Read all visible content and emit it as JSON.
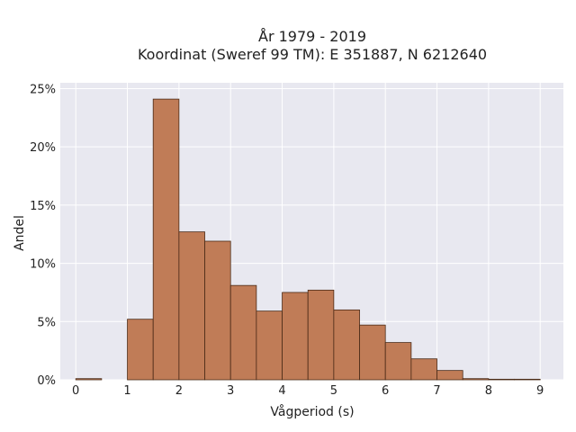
{
  "chart_data": {
    "type": "bar",
    "title_line1": "År 1979 - 2019",
    "title_line2": "Koordinat (Sweref 99 TM): E 351887, N 6212640",
    "xlabel": "Vågperiod (s)",
    "ylabel": "Andel",
    "xlim": [
      -0.3,
      9.45
    ],
    "ylim": [
      0,
      25.5
    ],
    "x_ticks": [
      0,
      1,
      2,
      3,
      4,
      5,
      6,
      7,
      8,
      9
    ],
    "x_tick_labels": [
      "0",
      "1",
      "2",
      "3",
      "4",
      "5",
      "6",
      "7",
      "8",
      "9"
    ],
    "y_ticks": [
      0,
      5,
      10,
      15,
      20,
      25
    ],
    "y_tick_labels": [
      "0%",
      "5%",
      "10%",
      "15%",
      "20%",
      "25%"
    ],
    "grid": true,
    "bin_width": 0.5,
    "bins": [
      {
        "x0": 0.0,
        "value": 0.1
      },
      {
        "x0": 0.5,
        "value": 0.0
      },
      {
        "x0": 1.0,
        "value": 5.2
      },
      {
        "x0": 1.5,
        "value": 24.1
      },
      {
        "x0": 2.0,
        "value": 12.7
      },
      {
        "x0": 2.5,
        "value": 11.9
      },
      {
        "x0": 3.0,
        "value": 8.1
      },
      {
        "x0": 3.5,
        "value": 5.9
      },
      {
        "x0": 4.0,
        "value": 7.5
      },
      {
        "x0": 4.5,
        "value": 7.7
      },
      {
        "x0": 5.0,
        "value": 6.0
      },
      {
        "x0": 5.5,
        "value": 4.7
      },
      {
        "x0": 6.0,
        "value": 3.2
      },
      {
        "x0": 6.5,
        "value": 1.8
      },
      {
        "x0": 7.0,
        "value": 0.8
      },
      {
        "x0": 7.5,
        "value": 0.1
      },
      {
        "x0": 8.0,
        "value": 0.05
      },
      {
        "x0": 8.5,
        "value": 0.05
      }
    ],
    "colors": {
      "bar_fill": "#c07c57",
      "bar_stroke": "#4a2a16",
      "plot_bg": "#e8e8f0",
      "grid": "#ffffff"
    }
  }
}
